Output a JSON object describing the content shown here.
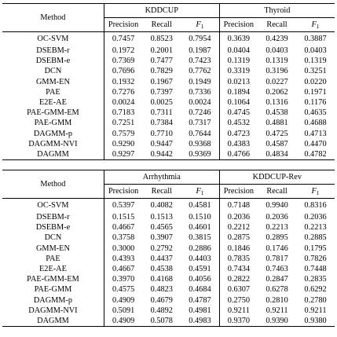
{
  "method_header": "Method",
  "metric_labels": {
    "precision": "Precision",
    "recall": "Recall",
    "f1_base": "F",
    "f1_sub": "1"
  },
  "top_table": {
    "datasets": [
      "KDDCUP",
      "Thyroid"
    ],
    "rows": [
      {
        "method": "OC-SVM",
        "values": [
          "0.7457",
          "0.8523",
          "0.7954",
          "0.3639",
          "0.4239",
          "0.3887"
        ]
      },
      {
        "method": "DSEBM-r",
        "values": [
          "0.1972",
          "0.2001",
          "0.1987",
          "0.0404",
          "0.0403",
          "0.0403"
        ]
      },
      {
        "method": "DSEBM-e",
        "values": [
          "0.7369",
          "0.7477",
          "0.7423",
          "0.1319",
          "0.1319",
          "0.1319"
        ]
      },
      {
        "method": "DCN",
        "values": [
          "0.7696",
          "0.7829",
          "0.7762",
          "0.3319",
          "0.3196",
          "0.3251"
        ]
      },
      {
        "method": "GMM-EN",
        "values": [
          "0.1932",
          "0.1967",
          "0.1949",
          "0.0213",
          "0.0227",
          "0.0220"
        ]
      },
      {
        "method": "PAE",
        "values": [
          "0.7276",
          "0.7397",
          "0.7336",
          "0.1894",
          "0.2062",
          "0.1971"
        ]
      },
      {
        "method": "E2E-AE",
        "values": [
          "0.0024",
          "0.0025",
          "0.0024",
          "0.1064",
          "0.1316",
          "0.1176"
        ]
      },
      {
        "method": "PAE-GMM-EM",
        "values": [
          "0.7183",
          "0.7311",
          "0.7246",
          "0.4745",
          "0.4538",
          "0.4635"
        ]
      },
      {
        "method": "PAE-GMM",
        "values": [
          "0.7251",
          "0.7384",
          "0.7317",
          "0.4532",
          "0.4881",
          "0.4688"
        ]
      },
      {
        "method": "DAGMM-p",
        "values": [
          "0.7579",
          "0.7710",
          "0.7644",
          "0.4723",
          "0.4725",
          "0.4713"
        ]
      },
      {
        "method": "DAGMM-NVI",
        "values": [
          "0.9290",
          "0.9447",
          "0.9368",
          "0.4383",
          "0.4587",
          "0.4470"
        ]
      },
      {
        "method": "DAGMM",
        "values": [
          "0.9297",
          "0.9442",
          "0.9369",
          "0.4766",
          "0.4834",
          "0.4782"
        ]
      }
    ]
  },
  "bottom_table": {
    "datasets": [
      "Arrhythmia",
      "KDDCUP-Rev"
    ],
    "rows": [
      {
        "method": "OC-SVM",
        "values": [
          "0.5397",
          "0.4082",
          "0.4581",
          "0.7148",
          "0.9940",
          "0.8316"
        ]
      },
      {
        "method": "DSEBM-r",
        "values": [
          "0.1515",
          "0.1513",
          "0.1510",
          "0.2036",
          "0.2036",
          "0.2036"
        ]
      },
      {
        "method": "DSEBM-e",
        "values": [
          "0.4667",
          "0.4565",
          "0.4601",
          "0.2212",
          "0.2213",
          "0.2213"
        ]
      },
      {
        "method": "DCN",
        "values": [
          "0.3758",
          "0.3907",
          "0.3815",
          "0.2875",
          "0.2895",
          "0.2885"
        ]
      },
      {
        "method": "GMM-EN",
        "values": [
          "0.3000",
          "0.2792",
          "0.2886",
          "0.1846",
          "0.1746",
          "0.1795"
        ]
      },
      {
        "method": "PAE",
        "values": [
          "0.4393",
          "0.4437",
          "0.4403",
          "0.7835",
          "0.7817",
          "0.7826"
        ]
      },
      {
        "method": "E2E-AE",
        "values": [
          "0.4667",
          "0.4538",
          "0.4591",
          "0.7434",
          "0.7463",
          "0.7448"
        ]
      },
      {
        "method": "PAE-GMM-EM",
        "values": [
          "0.3970",
          "0.4168",
          "0.4056",
          "0.2822",
          "0.2847",
          "0.2835"
        ]
      },
      {
        "method": "PAE-GMM",
        "values": [
          "0.4575",
          "0.4823",
          "0.4684",
          "0.6307",
          "0.6278",
          "0.6292"
        ]
      },
      {
        "method": "DAGMM-p",
        "values": [
          "0.4909",
          "0.4679",
          "0.4787",
          "0.2750",
          "0.2810",
          "0.2780"
        ]
      },
      {
        "method": "DAGMM-NVI",
        "values": [
          "0.5091",
          "0.4892",
          "0.4981",
          "0.9211",
          "0.9211",
          "0.9211"
        ]
      },
      {
        "method": "DAGMM",
        "values": [
          "0.4909",
          "0.5078",
          "0.4983",
          "0.9370",
          "0.9390",
          "0.9380"
        ]
      }
    ]
  }
}
